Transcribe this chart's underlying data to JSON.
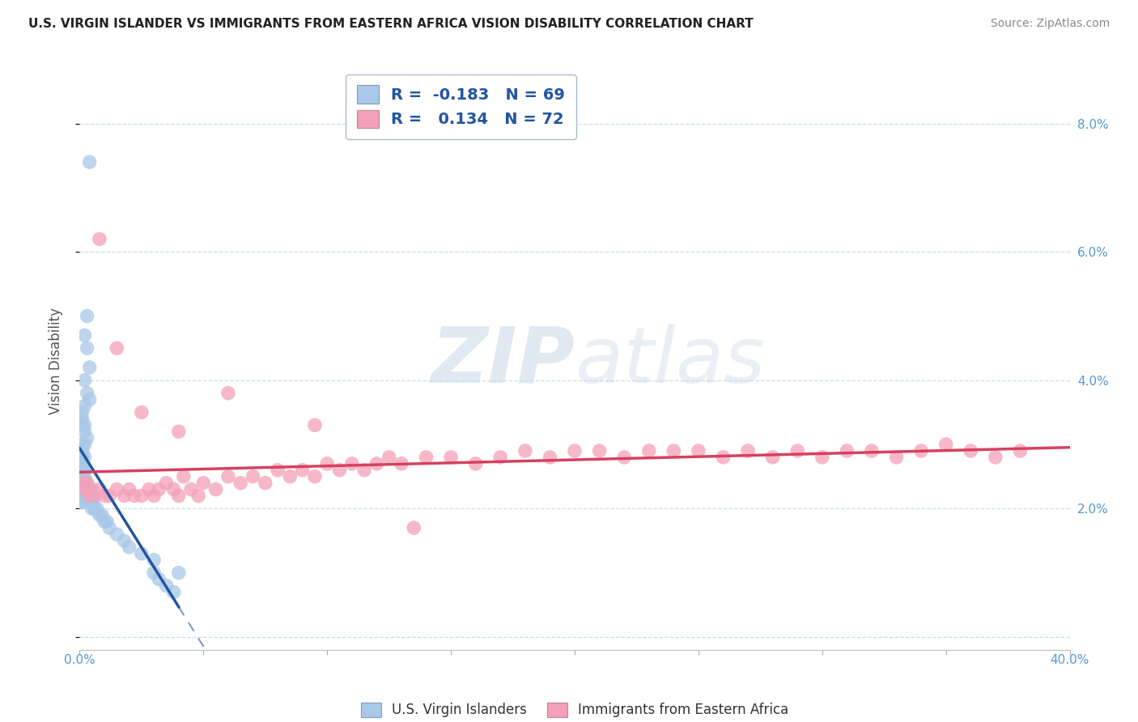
{
  "title": "U.S. VIRGIN ISLANDER VS IMMIGRANTS FROM EASTERN AFRICA VISION DISABILITY CORRELATION CHART",
  "source": "Source: ZipAtlas.com",
  "ylabel": "Vision Disability",
  "xlim": [
    0.0,
    0.4
  ],
  "ylim": [
    -0.002,
    0.088
  ],
  "yticks": [
    0.0,
    0.02,
    0.04,
    0.06,
    0.08
  ],
  "ytick_labels_right": [
    "",
    "2.0%",
    "4.0%",
    "6.0%",
    "8.0%"
  ],
  "xtick_left_label": "0.0%",
  "xtick_right_label": "40.0%",
  "blue_R": -0.183,
  "blue_N": 69,
  "pink_R": 0.134,
  "pink_N": 72,
  "blue_color": "#a8c8e8",
  "pink_color": "#f4a0b8",
  "blue_line_color": "#2255a0",
  "pink_line_color": "#d84060",
  "watermark_text": "ZIPatlas",
  "legend_label_blue": "U.S. Virgin Islanders",
  "legend_label_pink": "Immigrants from Eastern Africa",
  "title_fontsize": 11,
  "source_fontsize": 10,
  "tick_color": "#5599cc",
  "legend_R_color": "#2255a0",
  "legend_N_color": "#2255a0",
  "blue_points_x": [
    0.004,
    0.003,
    0.002,
    0.003,
    0.004,
    0.002,
    0.003,
    0.004,
    0.002,
    0.001,
    0.001,
    0.002,
    0.001,
    0.002,
    0.003,
    0.001,
    0.002,
    0.001,
    0.001,
    0.002,
    0.001,
    0.001,
    0.001,
    0.001,
    0.001,
    0.001,
    0.001,
    0.001,
    0.001,
    0.001,
    0.001,
    0.001,
    0.001,
    0.001,
    0.001,
    0.001,
    0.001,
    0.001,
    0.001,
    0.001,
    0.002,
    0.002,
    0.002,
    0.002,
    0.003,
    0.003,
    0.003,
    0.004,
    0.004,
    0.005,
    0.005,
    0.005,
    0.006,
    0.007,
    0.008,
    0.009,
    0.01,
    0.011,
    0.012,
    0.015,
    0.018,
    0.02,
    0.025,
    0.03,
    0.03,
    0.032,
    0.035,
    0.038,
    0.04
  ],
  "blue_points_y": [
    0.074,
    0.05,
    0.047,
    0.045,
    0.042,
    0.04,
    0.038,
    0.037,
    0.036,
    0.035,
    0.034,
    0.033,
    0.033,
    0.032,
    0.031,
    0.03,
    0.03,
    0.029,
    0.029,
    0.028,
    0.028,
    0.027,
    0.027,
    0.026,
    0.026,
    0.025,
    0.025,
    0.024,
    0.024,
    0.024,
    0.023,
    0.023,
    0.023,
    0.023,
    0.022,
    0.022,
    0.022,
    0.022,
    0.021,
    0.021,
    0.026,
    0.025,
    0.024,
    0.023,
    0.024,
    0.023,
    0.022,
    0.023,
    0.022,
    0.021,
    0.021,
    0.02,
    0.02,
    0.02,
    0.019,
    0.019,
    0.018,
    0.018,
    0.017,
    0.016,
    0.015,
    0.014,
    0.013,
    0.012,
    0.01,
    0.009,
    0.008,
    0.007,
    0.01
  ],
  "pink_points_x": [
    0.001,
    0.002,
    0.003,
    0.004,
    0.005,
    0.006,
    0.008,
    0.01,
    0.012,
    0.015,
    0.018,
    0.02,
    0.022,
    0.025,
    0.028,
    0.03,
    0.032,
    0.035,
    0.038,
    0.04,
    0.042,
    0.045,
    0.048,
    0.05,
    0.055,
    0.06,
    0.065,
    0.07,
    0.075,
    0.08,
    0.085,
    0.09,
    0.095,
    0.1,
    0.105,
    0.11,
    0.115,
    0.12,
    0.125,
    0.13,
    0.14,
    0.15,
    0.16,
    0.17,
    0.18,
    0.19,
    0.2,
    0.21,
    0.22,
    0.23,
    0.24,
    0.25,
    0.26,
    0.27,
    0.28,
    0.29,
    0.3,
    0.31,
    0.32,
    0.33,
    0.34,
    0.35,
    0.36,
    0.37,
    0.38,
    0.008,
    0.015,
    0.025,
    0.04,
    0.06,
    0.095,
    0.135
  ],
  "pink_points_y": [
    0.024,
    0.023,
    0.024,
    0.022,
    0.023,
    0.022,
    0.023,
    0.022,
    0.022,
    0.023,
    0.022,
    0.023,
    0.022,
    0.022,
    0.023,
    0.022,
    0.023,
    0.024,
    0.023,
    0.022,
    0.025,
    0.023,
    0.022,
    0.024,
    0.023,
    0.025,
    0.024,
    0.025,
    0.024,
    0.026,
    0.025,
    0.026,
    0.025,
    0.027,
    0.026,
    0.027,
    0.026,
    0.027,
    0.028,
    0.027,
    0.028,
    0.028,
    0.027,
    0.028,
    0.029,
    0.028,
    0.029,
    0.029,
    0.028,
    0.029,
    0.029,
    0.029,
    0.028,
    0.029,
    0.028,
    0.029,
    0.028,
    0.029,
    0.029,
    0.028,
    0.029,
    0.03,
    0.029,
    0.028,
    0.029,
    0.062,
    0.045,
    0.035,
    0.032,
    0.038,
    0.033,
    0.017
  ]
}
